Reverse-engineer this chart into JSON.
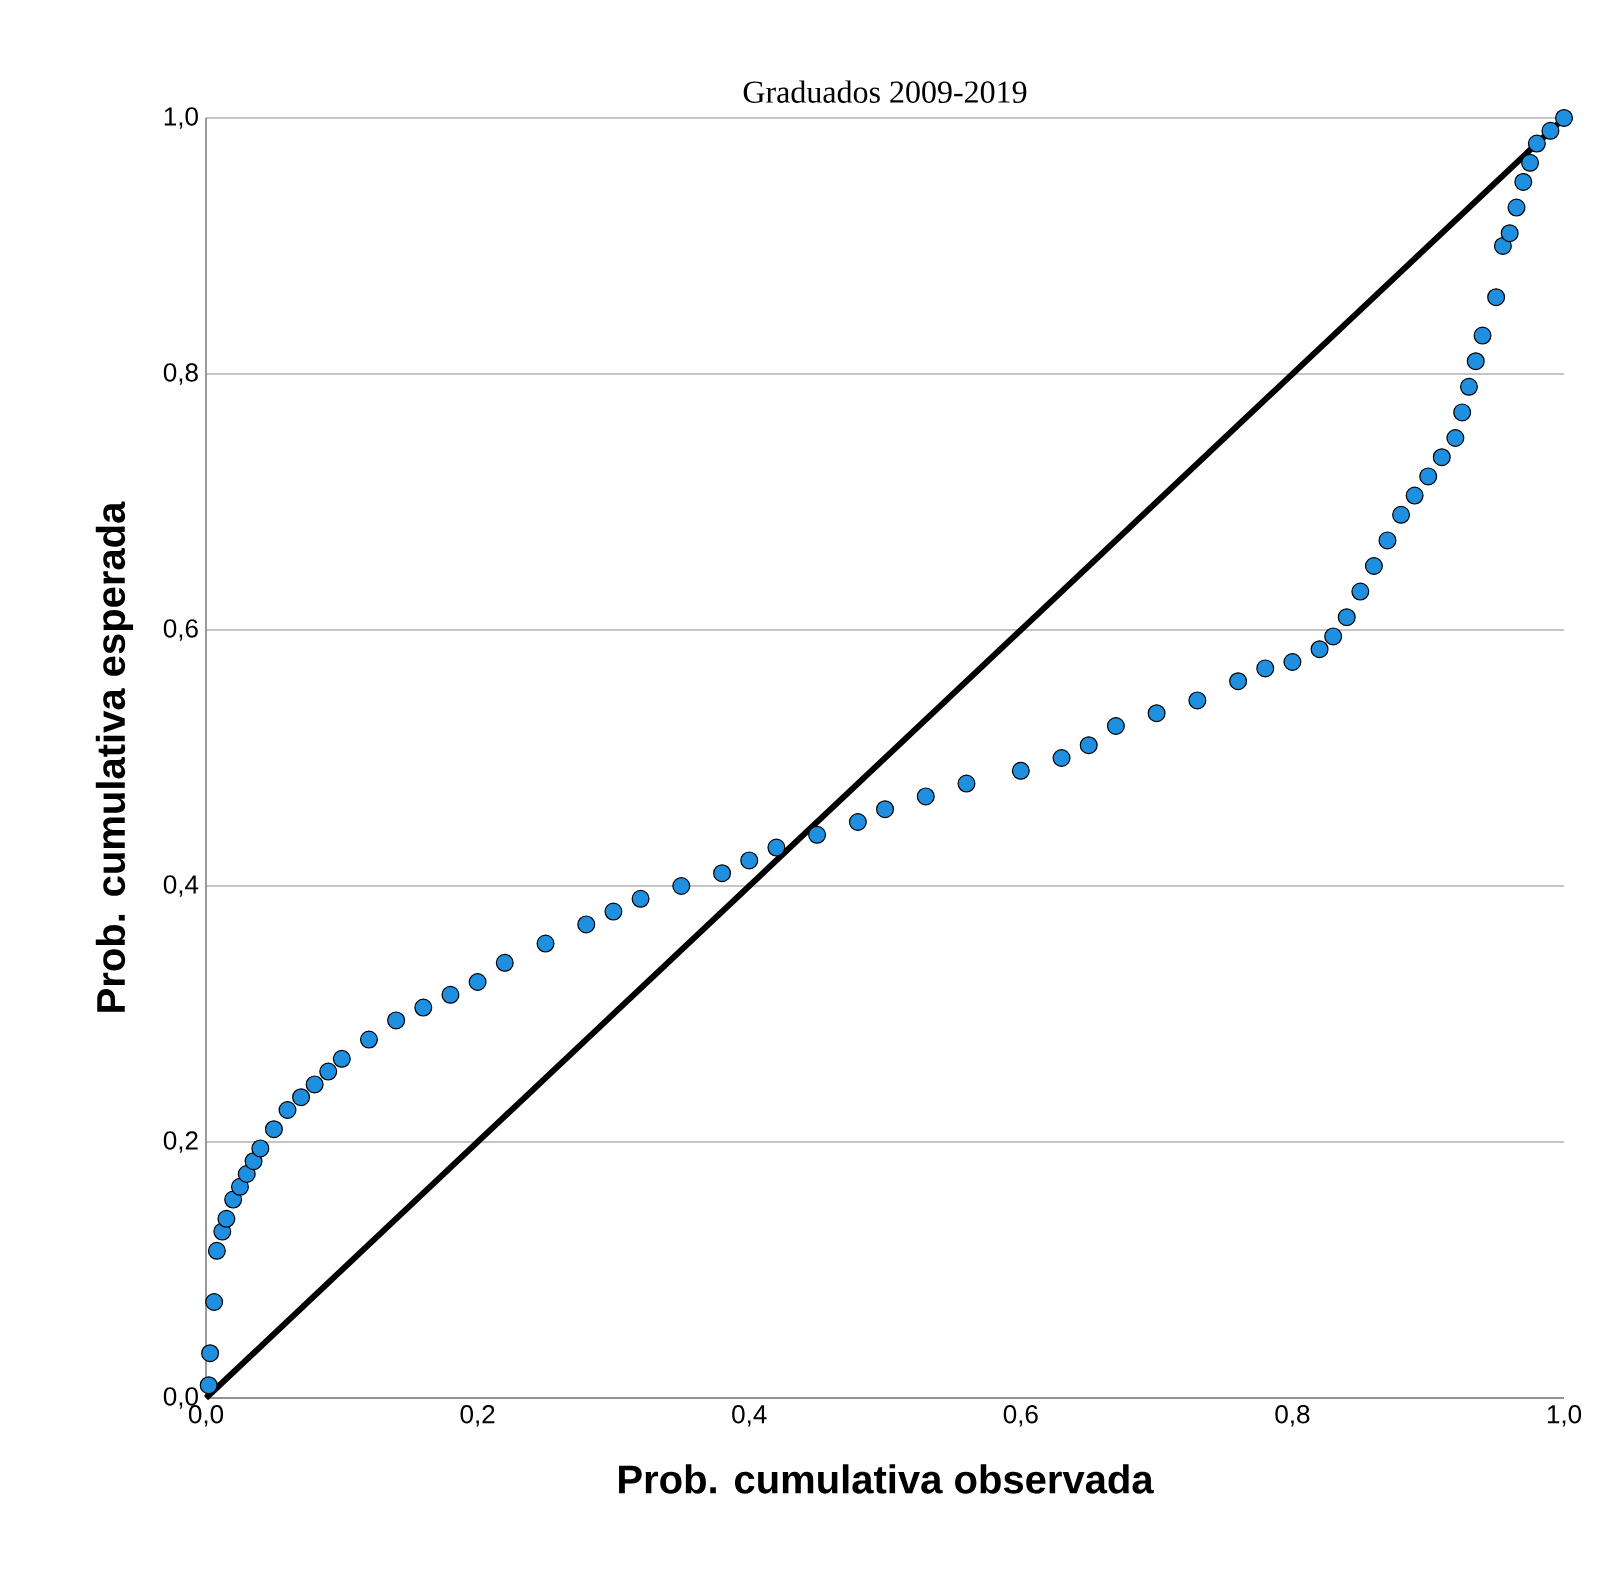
{
  "chart_data": {
    "type": "scatter",
    "title": "Graduados 2009-2019",
    "xlabel": "Prob. cumulativa observada",
    "ylabel": "Prob. cumulativa esperada",
    "xlim": [
      0,
      1
    ],
    "ylim": [
      0,
      1
    ],
    "xticks": [
      {
        "value": 0,
        "label": "0,0"
      },
      {
        "value": 0.2,
        "label": "0,2"
      },
      {
        "value": 0.4,
        "label": "0,4"
      },
      {
        "value": 0.6,
        "label": "0,6"
      },
      {
        "value": 0.8,
        "label": "0,8"
      },
      {
        "value": 1,
        "label": "1,0"
      }
    ],
    "yticks": [
      {
        "value": 0,
        "label": "0,0"
      },
      {
        "value": 0.2,
        "label": "0,2"
      },
      {
        "value": 0.4,
        "label": "0,4"
      },
      {
        "value": 0.6,
        "label": "0,6"
      },
      {
        "value": 0.8,
        "label": "0,8"
      },
      {
        "value": 1,
        "label": "1,0"
      }
    ],
    "grid": "y",
    "marker": "circle",
    "series": [
      {
        "color": "#1f8fe0",
        "x": [
          0.002,
          0.003,
          0.006,
          0.008,
          0.012,
          0.015,
          0.02,
          0.025,
          0.03,
          0.035,
          0.04,
          0.05,
          0.06,
          0.07,
          0.08,
          0.09,
          0.1,
          0.12,
          0.14,
          0.16,
          0.18,
          0.2,
          0.22,
          0.25,
          0.28,
          0.3,
          0.32,
          0.35,
          0.38,
          0.4,
          0.42,
          0.45,
          0.48,
          0.5,
          0.53,
          0.56,
          0.6,
          0.63,
          0.65,
          0.67,
          0.7,
          0.73,
          0.76,
          0.78,
          0.8,
          0.82,
          0.83,
          0.84,
          0.85,
          0.86,
          0.87,
          0.88,
          0.89,
          0.9,
          0.91,
          0.92,
          0.925,
          0.93,
          0.935,
          0.94,
          0.95,
          0.955,
          0.96,
          0.965,
          0.97,
          0.975,
          0.98,
          0.99,
          1.0
        ],
        "values": [
          0.01,
          0.035,
          0.075,
          0.115,
          0.13,
          0.14,
          0.155,
          0.165,
          0.175,
          0.185,
          0.195,
          0.21,
          0.225,
          0.235,
          0.245,
          0.255,
          0.265,
          0.28,
          0.295,
          0.305,
          0.315,
          0.325,
          0.34,
          0.355,
          0.37,
          0.38,
          0.39,
          0.4,
          0.41,
          0.42,
          0.43,
          0.44,
          0.45,
          0.46,
          0.47,
          0.48,
          0.49,
          0.5,
          0.51,
          0.525,
          0.535,
          0.545,
          0.56,
          0.57,
          0.575,
          0.585,
          0.595,
          0.61,
          0.63,
          0.65,
          0.67,
          0.69,
          0.705,
          0.72,
          0.735,
          0.75,
          0.77,
          0.79,
          0.81,
          0.83,
          0.86,
          0.9,
          0.91,
          0.93,
          0.95,
          0.965,
          0.98,
          0.99,
          1.0
        ]
      },
      {
        "type": "line",
        "marker": "none",
        "color": "#000000",
        "x": [
          0,
          1
        ],
        "values": [
          0,
          1
        ]
      }
    ]
  }
}
